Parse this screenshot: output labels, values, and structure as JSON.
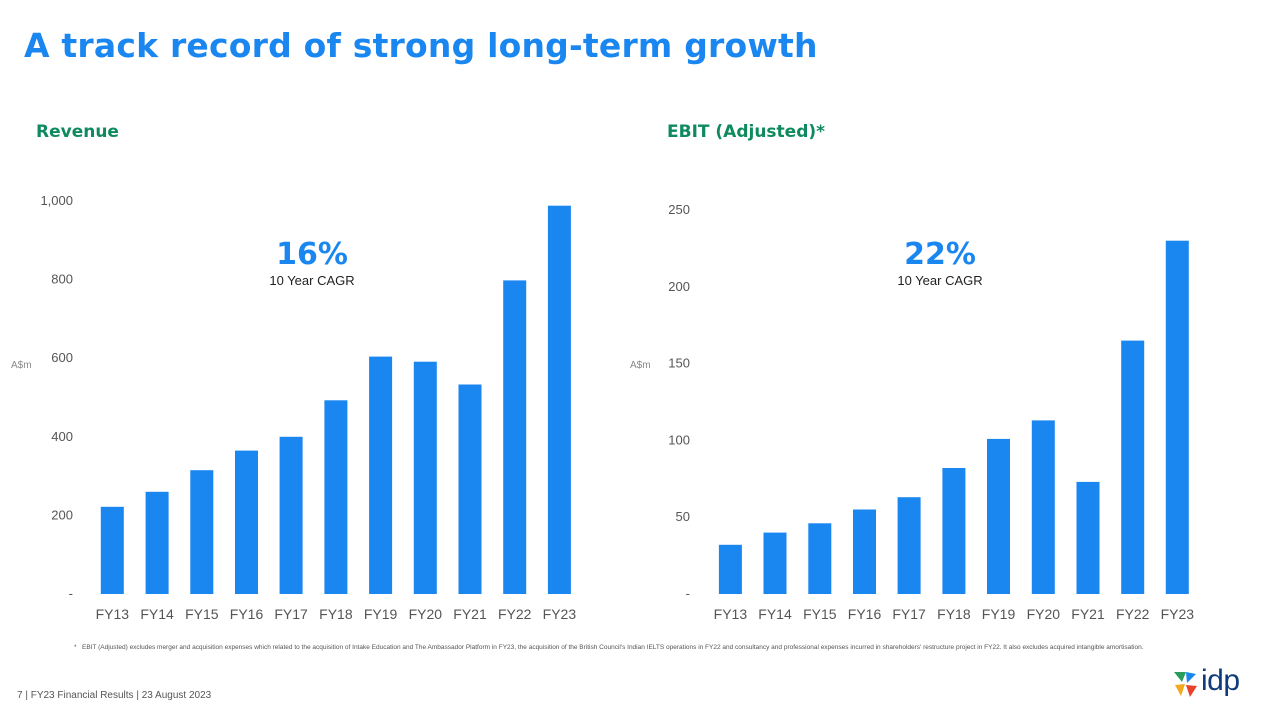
{
  "page": {
    "title": "A track record of strong long-term growth",
    "footnote_mark": "*",
    "footnote": "EBIT (Adjusted) excludes merger and acquisition expenses which related to the acquisition of Intake Education and The Ambassador Platform in FY23, the acquisition of the British Council's Indian IELTS operations in FY22 and consultancy and professional expenses incurred in shareholders' restructure project in FY22.  It also excludes acquired intangible amortisation.",
    "footer": "7  |  FY23 Financial Results  |  23 August 2023",
    "logo_text": "idp"
  },
  "colors": {
    "title": "#1a86f0",
    "chart_title": "#0f8a5f",
    "bar": "#1a86f0",
    "axis_text": "#555555"
  },
  "chart_data": [
    {
      "type": "bar",
      "title": "Revenue",
      "ylabel": "A$m",
      "categories": [
        "FY13",
        "FY14",
        "FY15",
        "FY16",
        "FY17",
        "FY18",
        "FY19",
        "FY20",
        "FY21",
        "FY22",
        "FY23"
      ],
      "values": [
        222,
        260,
        315,
        365,
        400,
        493,
        604,
        591,
        533,
        798,
        988
      ],
      "ylim": [
        0,
        1000
      ],
      "yticks": [
        0,
        200,
        400,
        600,
        800,
        1000
      ],
      "ytick_labels": [
        "-",
        "200",
        "400",
        "600",
        "800",
        "1,000"
      ],
      "annotation": {
        "value": "16%",
        "label": "10 Year CAGR"
      },
      "grid": false
    },
    {
      "type": "bar",
      "title": "EBIT (Adjusted)*",
      "ylabel": "A$m",
      "categories": [
        "FY13",
        "FY14",
        "FY15",
        "FY16",
        "FY17",
        "FY18",
        "FY19",
        "FY20",
        "FY21",
        "FY22",
        "FY23"
      ],
      "values": [
        32,
        40,
        46,
        55,
        63,
        82,
        101,
        113,
        73,
        165,
        230
      ],
      "ylim": [
        0,
        250
      ],
      "yticks": [
        0,
        50,
        100,
        150,
        200,
        250
      ],
      "ytick_labels": [
        "-",
        "50",
        "100",
        "150",
        "200",
        "250"
      ],
      "annotation": {
        "value": "22%",
        "label": "10 Year CAGR"
      },
      "grid": false
    }
  ]
}
